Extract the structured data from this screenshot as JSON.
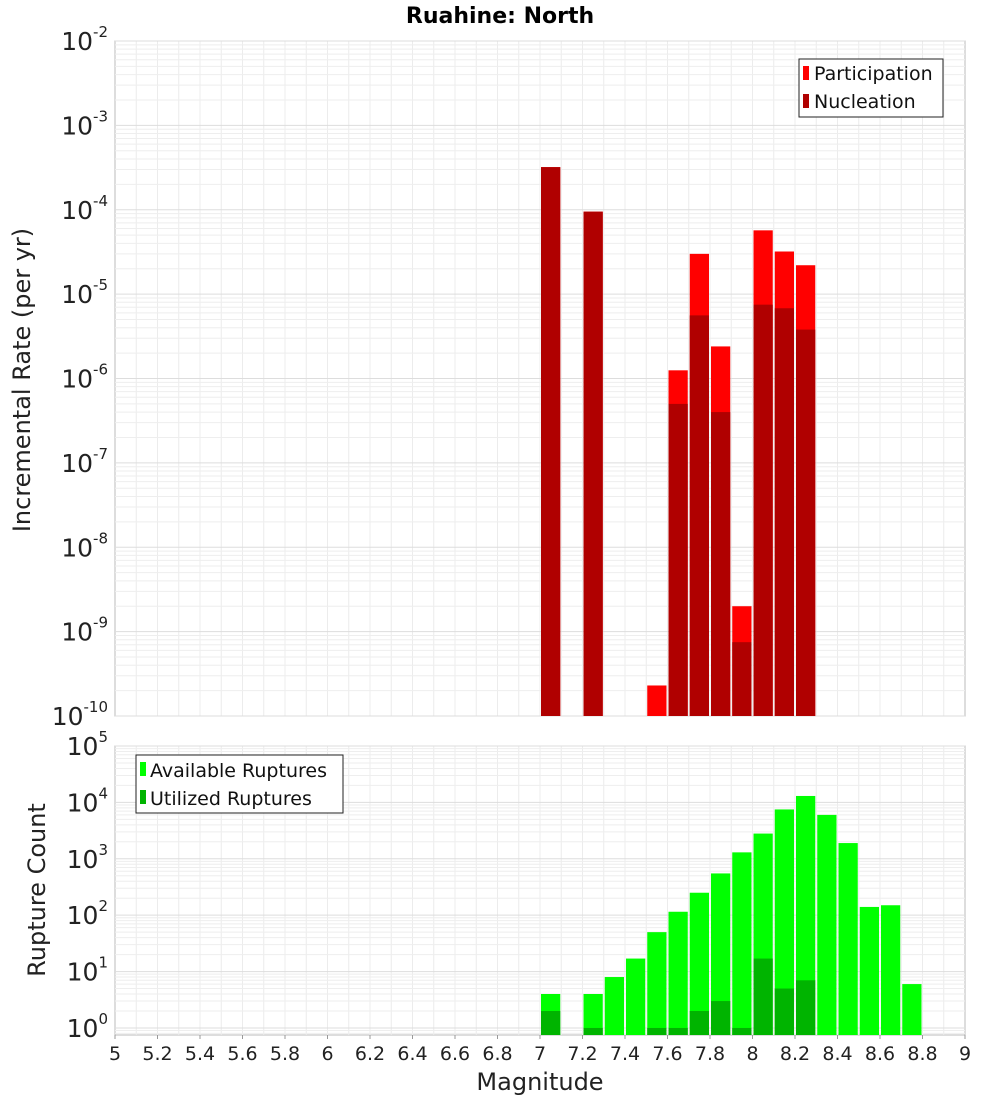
{
  "chart_data": [
    {
      "type": "bar",
      "title": "Ruahine: North",
      "ylabel": "Incremental Rate (per yr)",
      "yscale": "log",
      "ylim": [
        1e-10,
        0.01
      ],
      "y_tick_exponents": [
        "-10",
        "-9",
        "-8",
        "-7",
        "-6",
        "-5",
        "-4",
        "-3",
        "-2"
      ],
      "y_tick_base": "10",
      "xlim": [
        5,
        9
      ],
      "legend": {
        "position": "top-right",
        "entries": [
          "Participation",
          "Nucleation"
        ]
      },
      "colors": {
        "participation": "#ff0000",
        "nucleation": "#b00000"
      },
      "series": [
        {
          "name": "Participation",
          "x": [
            7.05,
            7.25,
            7.55,
            7.65,
            7.75,
            7.85,
            7.95,
            8.05,
            8.15,
            8.25
          ],
          "values": [
            0.00032,
            9.5e-05,
            2.3e-10,
            1.25e-06,
            3e-05,
            2.4e-06,
            2e-09,
            5.7e-05,
            3.2e-05,
            2.2e-05
          ]
        },
        {
          "name": "Nucleation",
          "x": [
            7.05,
            7.25,
            7.65,
            7.75,
            7.85,
            7.95,
            8.05,
            8.15,
            8.25
          ],
          "values": [
            0.00032,
            9.5e-05,
            5e-07,
            5.6e-06,
            4e-07,
            7.5e-10,
            7.5e-06,
            6.8e-06,
            3.8e-06
          ]
        }
      ]
    },
    {
      "type": "bar",
      "xlabel": "Magnitude",
      "ylabel": "Rupture Count",
      "yscale": "log",
      "ylim": [
        0.75,
        100000.0
      ],
      "y_tick_exponents": [
        "0",
        "1",
        "2",
        "3",
        "4",
        "5"
      ],
      "y_tick_base": "10",
      "xlim": [
        5,
        9
      ],
      "x_ticks": [
        "5",
        "5.2",
        "5.4",
        "5.6",
        "5.8",
        "6",
        "6.2",
        "6.4",
        "6.6",
        "6.8",
        "7",
        "7.2",
        "7.4",
        "7.6",
        "7.8",
        "8",
        "8.2",
        "8.4",
        "8.6",
        "8.8",
        "9"
      ],
      "legend": {
        "position": "top-left",
        "entries": [
          "Available Ruptures",
          "Utilized Ruptures"
        ]
      },
      "colors": {
        "available": "#00ff00",
        "utilized": "#00b400"
      },
      "series": [
        {
          "name": "Available Ruptures",
          "x": [
            7.05,
            7.25,
            7.35,
            7.45,
            7.55,
            7.65,
            7.75,
            7.85,
            7.95,
            8.05,
            8.15,
            8.25,
            8.35,
            8.45,
            8.55,
            8.65,
            8.75
          ],
          "values": [
            4,
            4,
            8,
            17,
            50,
            115,
            250,
            550,
            1300,
            2800,
            7500,
            13000,
            6000,
            1900,
            140,
            150,
            6
          ]
        },
        {
          "name": "Utilized Ruptures",
          "x": [
            7.05,
            7.25,
            7.55,
            7.65,
            7.75,
            7.85,
            7.95,
            8.05,
            8.15,
            8.25
          ],
          "values": [
            2,
            1,
            1,
            1,
            2,
            3,
            1,
            17,
            5,
            7
          ]
        }
      ]
    }
  ]
}
